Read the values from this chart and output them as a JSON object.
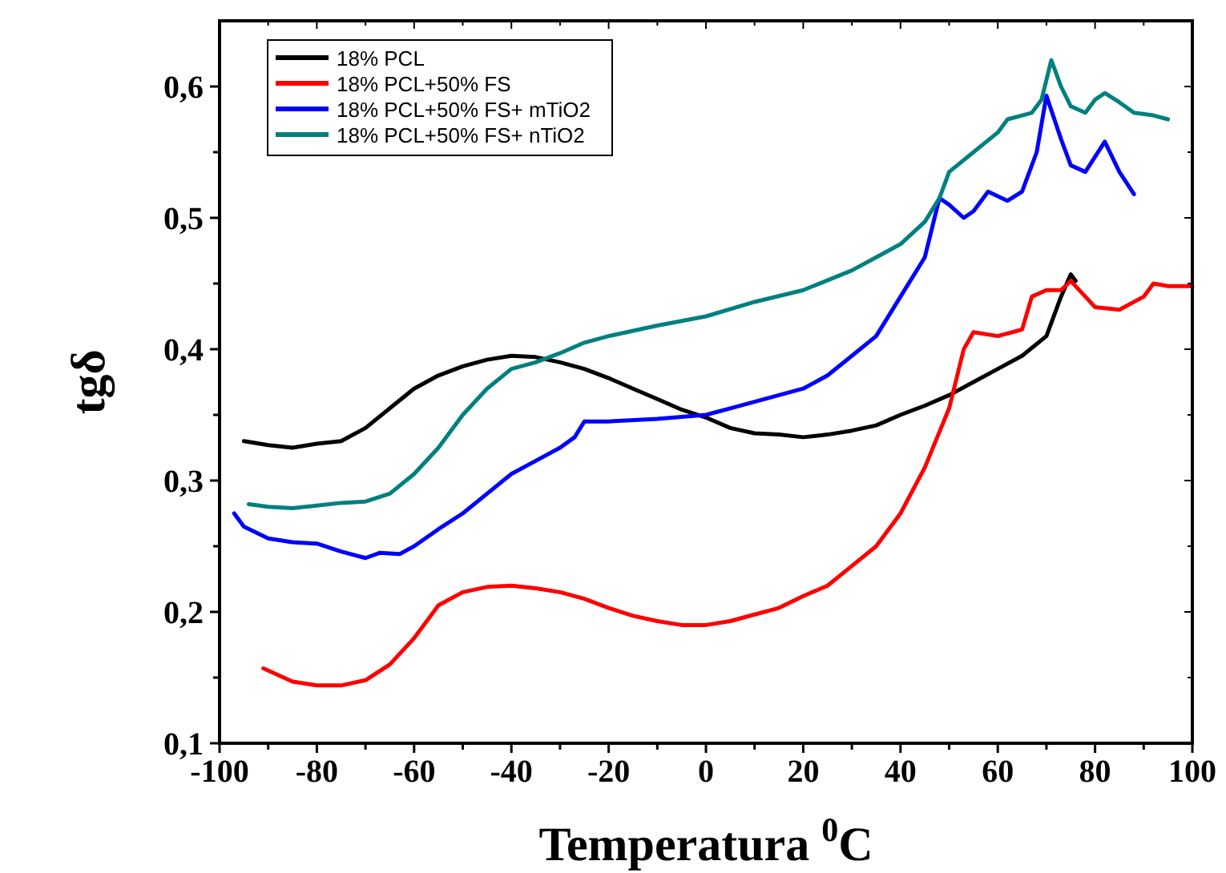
{
  "chart_data": {
    "type": "line",
    "xlabel": "Temperatura $^{0}$C",
    "ylabel": "tgδ",
    "xlim": [
      -100,
      100
    ],
    "ylim": [
      0.1,
      0.65
    ],
    "xticks": [
      -100,
      {
        "value": -90,
        "label": null
      },
      -80,
      {
        "value": -70,
        "label": null
      },
      -60,
      {
        "value": -50,
        "label": null
      },
      -40,
      {
        "value": -30,
        "label": null
      },
      -20,
      {
        "value": -10,
        "label": null
      },
      0,
      {
        "value": 10,
        "label": null
      },
      20,
      {
        "value": 30,
        "label": null
      },
      40,
      {
        "value": 50,
        "label": null
      },
      60,
      {
        "value": 70,
        "label": null
      },
      80,
      {
        "value": 90,
        "label": null
      },
      100
    ],
    "yticks": [
      {
        "value": 0.1,
        "label": "0,1"
      },
      {
        "value": 0.15,
        "label": null
      },
      {
        "value": 0.2,
        "label": "0,2"
      },
      {
        "value": 0.25,
        "label": null
      },
      {
        "value": 0.3,
        "label": "0,3"
      },
      {
        "value": 0.35,
        "label": null
      },
      {
        "value": 0.4,
        "label": "0,4"
      },
      {
        "value": 0.45,
        "label": null
      },
      {
        "value": 0.5,
        "label": "0,5"
      },
      {
        "value": 0.55,
        "label": null
      },
      {
        "value": 0.6,
        "label": "0,6"
      }
    ],
    "grid": false,
    "legend": "top left",
    "marker": "none",
    "line_style": "solid",
    "series": [
      {
        "name": "18% PCL",
        "color": "#000000",
        "x": [
          -95,
          -90,
          -85,
          -80,
          -75,
          -70,
          -65,
          -60,
          -55,
          -50,
          -45,
          -40,
          -35,
          -30,
          -25,
          -20,
          -15,
          -10,
          -5,
          0,
          5,
          10,
          15,
          20,
          25,
          30,
          35,
          40,
          45,
          50,
          55,
          60,
          65,
          70,
          73,
          75,
          76
        ],
        "values": [
          0.33,
          0.327,
          0.325,
          0.328,
          0.33,
          0.34,
          0.355,
          0.37,
          0.38,
          0.387,
          0.392,
          0.395,
          0.394,
          0.39,
          0.385,
          0.378,
          0.37,
          0.362,
          0.354,
          0.348,
          0.34,
          0.336,
          0.335,
          0.333,
          0.335,
          0.338,
          0.342,
          0.35,
          0.357,
          0.365,
          0.375,
          0.385,
          0.395,
          0.41,
          0.44,
          0.457,
          0.452
        ]
      },
      {
        "name": "18% PCL+50% FS",
        "color": "#ff0000",
        "x": [
          -91,
          -85,
          -80,
          -75,
          -70,
          -65,
          -60,
          -55,
          -50,
          -45,
          -40,
          -35,
          -30,
          -25,
          -20,
          -15,
          -10,
          -5,
          0,
          5,
          10,
          15,
          20,
          25,
          30,
          35,
          40,
          45,
          50,
          53,
          55,
          60,
          65,
          67,
          70,
          73,
          75,
          78,
          80,
          85,
          90,
          92,
          95,
          100
        ],
        "values": [
          0.157,
          0.147,
          0.144,
          0.144,
          0.148,
          0.16,
          0.18,
          0.205,
          0.215,
          0.219,
          0.22,
          0.218,
          0.215,
          0.21,
          0.203,
          0.197,
          0.193,
          0.19,
          0.19,
          0.193,
          0.198,
          0.203,
          0.212,
          0.22,
          0.235,
          0.25,
          0.275,
          0.31,
          0.355,
          0.4,
          0.413,
          0.41,
          0.415,
          0.44,
          0.445,
          0.445,
          0.452,
          0.44,
          0.432,
          0.43,
          0.44,
          0.45,
          0.448,
          0.448
        ]
      },
      {
        "name": "18% PCL+50% FS+ mTiO2",
        "color": "#0000ff",
        "x": [
          -97,
          -95,
          -90,
          -85,
          -80,
          -75,
          -70,
          -67,
          -63,
          -60,
          -55,
          -50,
          -45,
          -40,
          -35,
          -30,
          -27,
          -25,
          -20,
          -10,
          0,
          5,
          10,
          15,
          20,
          25,
          30,
          35,
          40,
          45,
          48,
          50,
          53,
          55,
          58,
          62,
          65,
          68,
          70,
          73,
          75,
          78,
          82,
          85,
          88
        ],
        "values": [
          0.275,
          0.265,
          0.256,
          0.253,
          0.252,
          0.246,
          0.241,
          0.245,
          0.244,
          0.25,
          0.263,
          0.275,
          0.29,
          0.305,
          0.315,
          0.325,
          0.333,
          0.345,
          0.345,
          0.347,
          0.35,
          0.355,
          0.36,
          0.365,
          0.37,
          0.38,
          0.395,
          0.41,
          0.44,
          0.47,
          0.515,
          0.51,
          0.5,
          0.505,
          0.52,
          0.513,
          0.52,
          0.55,
          0.593,
          0.56,
          0.54,
          0.535,
          0.558,
          0.535,
          0.518
        ]
      },
      {
        "name": "18% PCL+50% FS+ nTiO2",
        "color": "#008080",
        "x": [
          -94,
          -90,
          -85,
          -80,
          -75,
          -70,
          -65,
          -60,
          -55,
          -50,
          -45,
          -40,
          -35,
          -30,
          -25,
          -20,
          -10,
          0,
          10,
          20,
          30,
          35,
          40,
          45,
          48,
          50,
          55,
          60,
          62,
          67,
          69,
          71,
          73,
          75,
          78,
          80,
          82,
          85,
          88,
          92,
          95
        ],
        "values": [
          0.282,
          0.28,
          0.279,
          0.281,
          0.283,
          0.284,
          0.29,
          0.305,
          0.325,
          0.35,
          0.37,
          0.385,
          0.39,
          0.397,
          0.405,
          0.41,
          0.418,
          0.425,
          0.436,
          0.445,
          0.46,
          0.47,
          0.48,
          0.497,
          0.515,
          0.535,
          0.55,
          0.565,
          0.575,
          0.58,
          0.59,
          0.62,
          0.6,
          0.585,
          0.58,
          0.59,
          0.595,
          0.588,
          0.58,
          0.578,
          0.575
        ]
      }
    ]
  }
}
